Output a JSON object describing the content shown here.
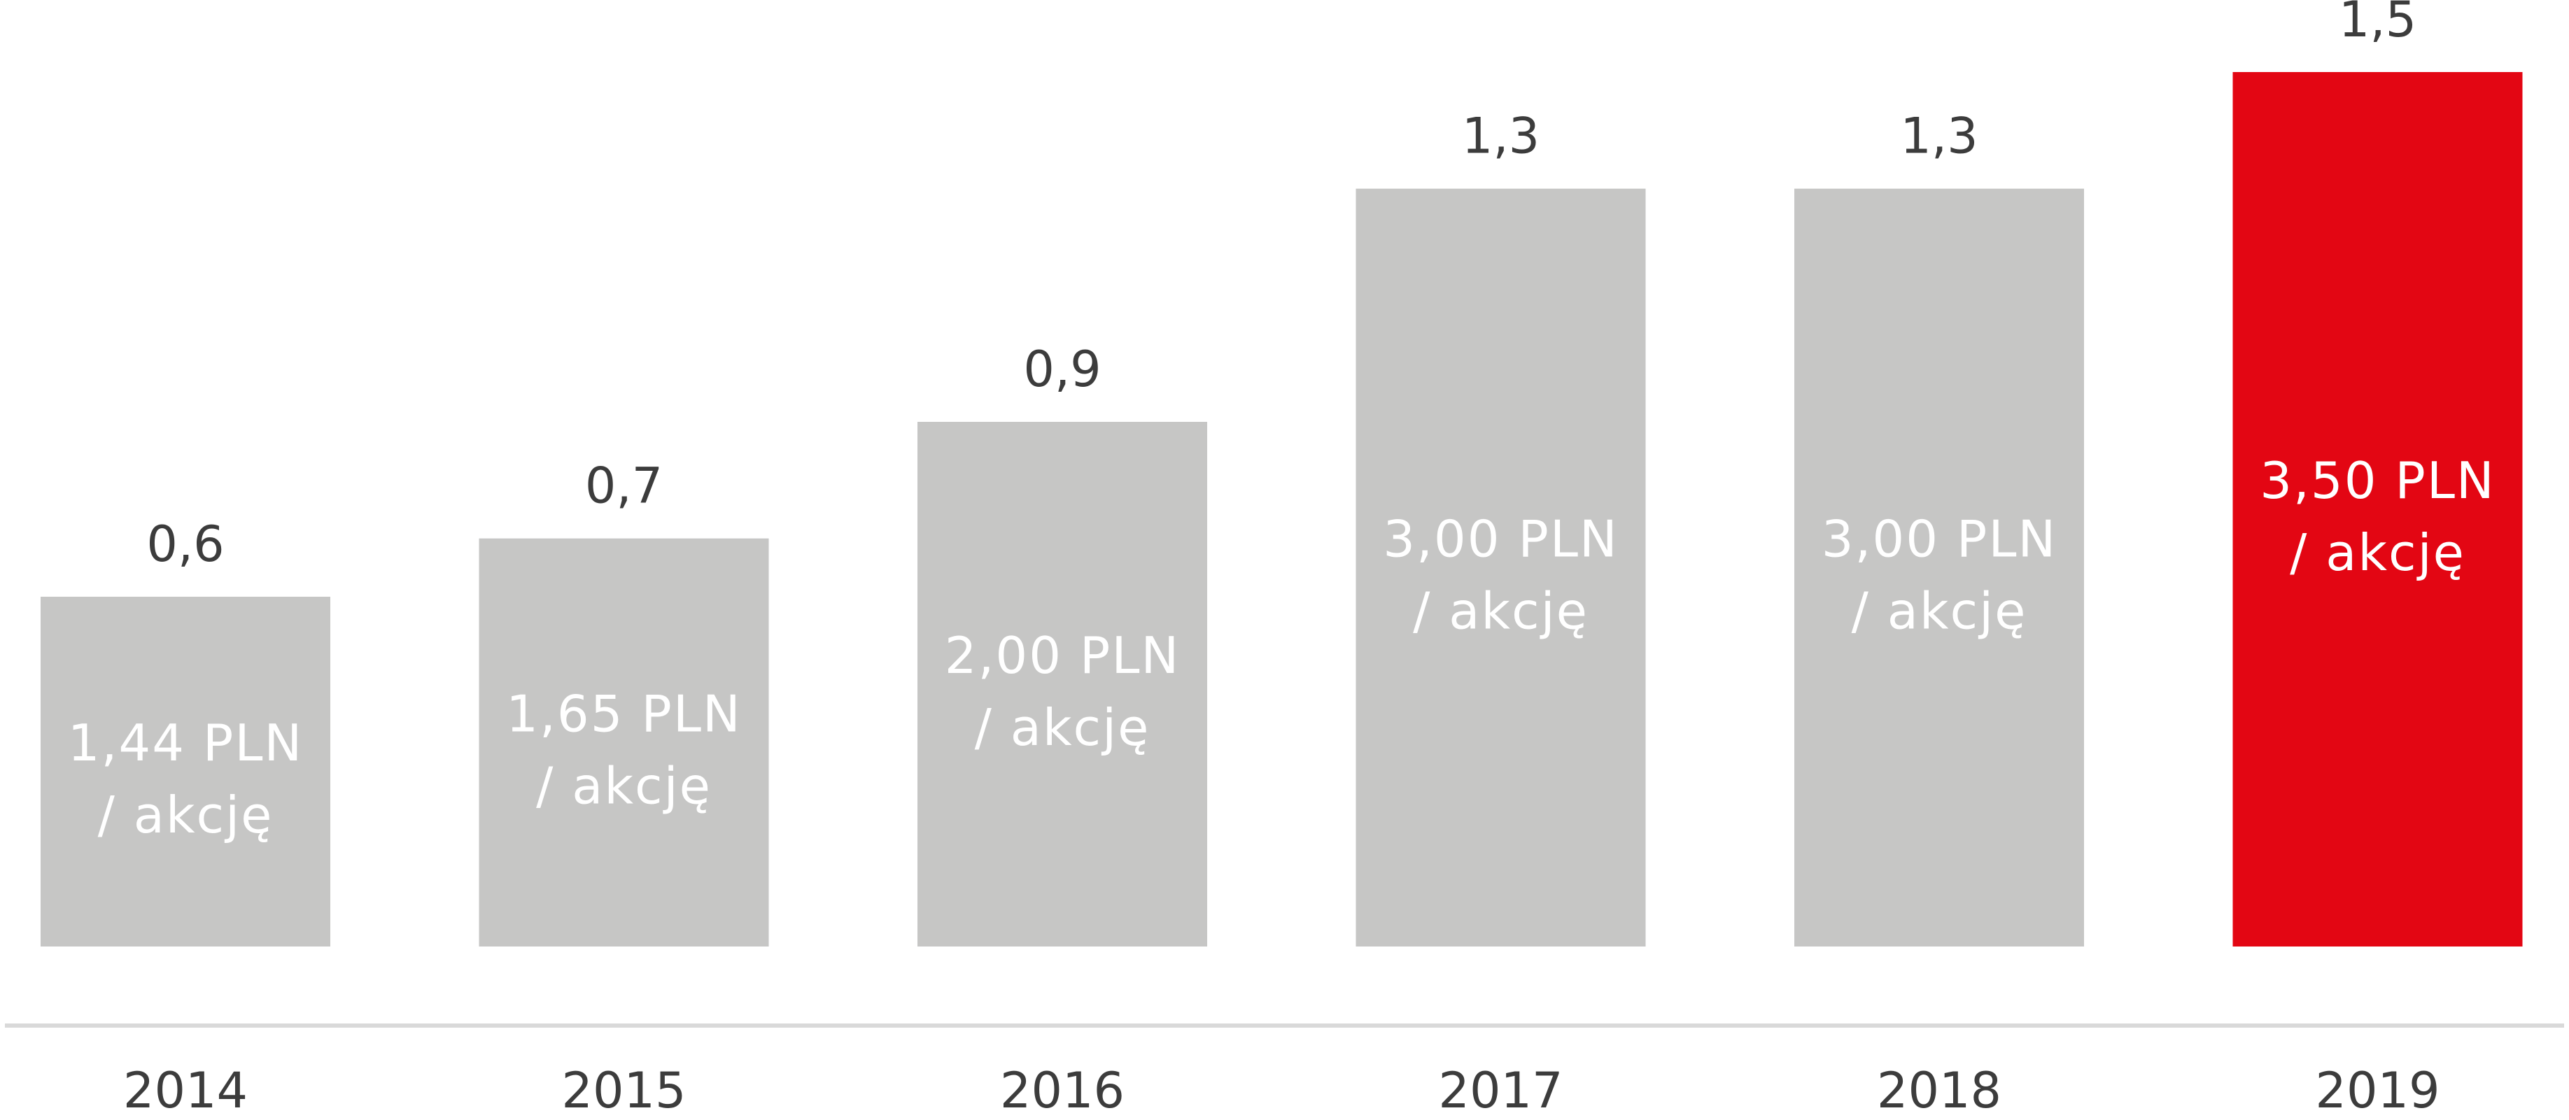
{
  "chart_data": {
    "type": "bar",
    "categories": [
      "2014",
      "2015",
      "2016",
      "2017",
      "2018",
      "2019"
    ],
    "values": [
      0.6,
      0.7,
      0.9,
      1.3,
      1.3,
      1.5
    ],
    "value_labels": [
      "0,6",
      "0,7",
      "0,9",
      "1,3",
      "1,3",
      "1,5"
    ],
    "inner_labels": [
      [
        "1,44 PLN",
        "/ akcję"
      ],
      [
        "1,65 PLN",
        "/ akcję"
      ],
      [
        "2,00 PLN",
        "/ akcję"
      ],
      [
        "3,00 PLN",
        "/ akcję"
      ],
      [
        "3,00 PLN",
        "/ akcję"
      ],
      [
        "3,50 PLN",
        "/ akcję"
      ]
    ],
    "colors": [
      "#c6c6c5",
      "#c6c6c5",
      "#c6c6c5",
      "#c6c6c5",
      "#c6c6c5",
      "#e30613"
    ]
  }
}
